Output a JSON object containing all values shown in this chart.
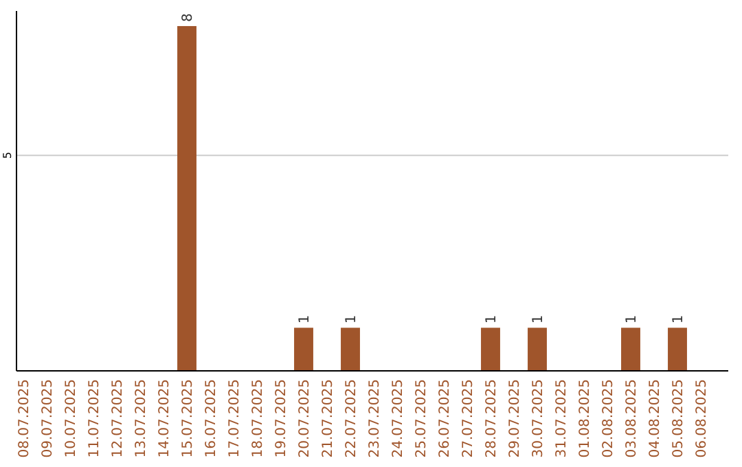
{
  "chart_data": {
    "type": "bar",
    "categories": [
      "08.07.2025",
      "09.07.2025",
      "10.07.2025",
      "11.07.2025",
      "12.07.2025",
      "13.07.2025",
      "14.07.2025",
      "15.07.2025",
      "16.07.2025",
      "17.07.2025",
      "18.07.2025",
      "19.07.2025",
      "20.07.2025",
      "21.07.2025",
      "22.07.2025",
      "23.07.2025",
      "24.07.2025",
      "25.07.2025",
      "26.07.2025",
      "27.07.2025",
      "28.07.2025",
      "29.07.2025",
      "30.07.2025",
      "31.07.2025",
      "01.08.2025",
      "02.08.2025",
      "03.08.2025",
      "04.08.2025",
      "05.08.2025",
      "06.08.2025"
    ],
    "values": [
      0,
      0,
      0,
      0,
      0,
      0,
      0,
      8,
      0,
      0,
      0,
      0,
      1,
      0,
      1,
      0,
      0,
      0,
      0,
      0,
      1,
      0,
      1,
      0,
      0,
      0,
      1,
      0,
      1,
      0
    ],
    "value_labels": [
      null,
      null,
      null,
      null,
      null,
      null,
      null,
      "8",
      null,
      null,
      null,
      null,
      "1",
      null,
      "1",
      null,
      null,
      null,
      null,
      null,
      "1",
      null,
      "1",
      null,
      null,
      null,
      "1",
      null,
      "1",
      null
    ],
    "color": "#a0552b",
    "ylim": [
      0,
      8.35
    ],
    "yticks": [
      5
    ],
    "grid": "y"
  }
}
